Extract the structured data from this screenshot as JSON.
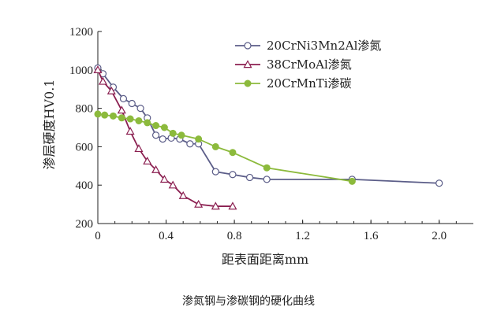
{
  "caption": "渗氮钢与渗碳钢的硬化曲线",
  "colors": {
    "axis": "#222222",
    "series_1": "#5b5d88",
    "series_2": "#8b1f50",
    "series_3": "#8cba3c"
  },
  "chart_data": {
    "type": "line",
    "xlabel": "距表面距离mm",
    "ylabel": "渗层硬度HV0.1",
    "xlim": [
      0,
      2.2
    ],
    "ylim": [
      200,
      1200
    ],
    "xticks": [
      0,
      0.4,
      0.8,
      1.2,
      1.6,
      2.0
    ],
    "xtick_labels": [
      "0",
      "0.4",
      "0.8",
      "1.2",
      "1.6",
      "2.0"
    ],
    "yticks": [
      200,
      400,
      600,
      800,
      1000,
      1200
    ],
    "ytick_labels": [
      "200",
      "400",
      "600",
      "800",
      "1000",
      "1200"
    ],
    "grid": false,
    "legend_position": "top-right",
    "series": [
      {
        "name": "20CrNi3Mn2Al渗氮",
        "marker": "open-circle",
        "color": "#5b5d88",
        "x": [
          0.0,
          0.03,
          0.09,
          0.15,
          0.2,
          0.25,
          0.29,
          0.34,
          0.38,
          0.43,
          0.48,
          0.54,
          0.59,
          0.69,
          0.79,
          0.89,
          0.99,
          1.49,
          2.0
        ],
        "y": [
          1010,
          980,
          910,
          850,
          825,
          800,
          750,
          660,
          640,
          645,
          640,
          615,
          615,
          470,
          455,
          440,
          430,
          430,
          410
        ]
      },
      {
        "name": "38CrMoAl渗氮",
        "marker": "open-triangle",
        "color": "#8b1f50",
        "x": [
          0.0,
          0.03,
          0.08,
          0.14,
          0.19,
          0.24,
          0.29,
          0.34,
          0.39,
          0.44,
          0.5,
          0.59,
          0.69,
          0.79
        ],
        "y": [
          1000,
          940,
          890,
          790,
          680,
          590,
          525,
          480,
          430,
          400,
          345,
          300,
          290,
          290
        ]
      },
      {
        "name": "20CrMnTi渗碳",
        "marker": "filled-circle",
        "color": "#8cba3c",
        "x": [
          0.0,
          0.04,
          0.09,
          0.14,
          0.19,
          0.24,
          0.29,
          0.34,
          0.39,
          0.44,
          0.49,
          0.59,
          0.69,
          0.79,
          0.99,
          1.49
        ],
        "y": [
          770,
          765,
          760,
          750,
          745,
          735,
          725,
          710,
          700,
          670,
          660,
          640,
          600,
          570,
          490,
          420
        ]
      }
    ]
  }
}
